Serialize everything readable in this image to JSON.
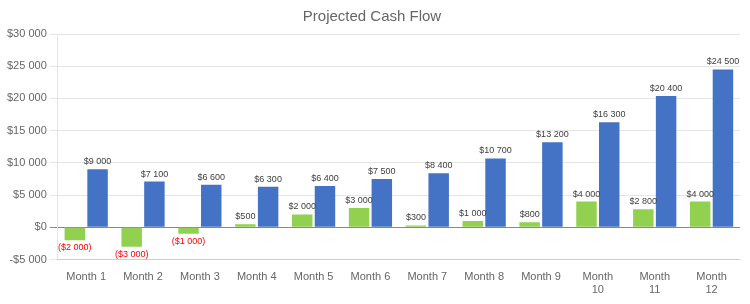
{
  "chart_data": {
    "type": "bar",
    "title": "Projected Cash Flow",
    "categories": [
      "Month 1",
      "Month 2",
      "Month 3",
      "Month 4",
      "Month 5",
      "Month 6",
      "Month 7",
      "Month 8",
      "Month 9",
      "Month\n10",
      "Month\n11",
      "Month\n12"
    ],
    "series": [
      {
        "color": "#92d050",
        "values": [
          -2000,
          -3000,
          -1000,
          500,
          2000,
          3000,
          300,
          1000,
          800,
          4000,
          2800,
          4000
        ],
        "value_labels": [
          "($2 000)",
          "($3 000)",
          "($1 000)",
          "$500",
          "$2 000",
          "$3 000",
          "$300",
          "$1 000",
          "$800",
          "$4 000",
          "$2 800",
          "$4 000"
        ]
      },
      {
        "color": "#4472c4",
        "values": [
          9000,
          7100,
          6600,
          6300,
          6400,
          7500,
          8400,
          10700,
          13200,
          16300,
          20400,
          24500
        ],
        "value_labels": [
          "$9 000",
          "$7 100",
          "$6 600",
          "$6 300",
          "$6 400",
          "$7 500",
          "$8 400",
          "$10 700",
          "$13 200",
          "$16 300",
          "$20 400",
          "$24 500"
        ]
      }
    ],
    "ylim": [
      -5000,
      30000
    ],
    "yticks": [
      {
        "value": -5000,
        "label": "-$5 000"
      },
      {
        "value": 0,
        "label": "$0"
      },
      {
        "value": 5000,
        "label": "$5 000"
      },
      {
        "value": 10000,
        "label": "$10 000"
      },
      {
        "value": 15000,
        "label": "$15 000"
      },
      {
        "value": 20000,
        "label": "$20 000"
      },
      {
        "value": 25000,
        "label": "$25 000"
      },
      {
        "value": 30000,
        "label": "$30 000"
      }
    ],
    "grid": true,
    "data_labels": true
  }
}
